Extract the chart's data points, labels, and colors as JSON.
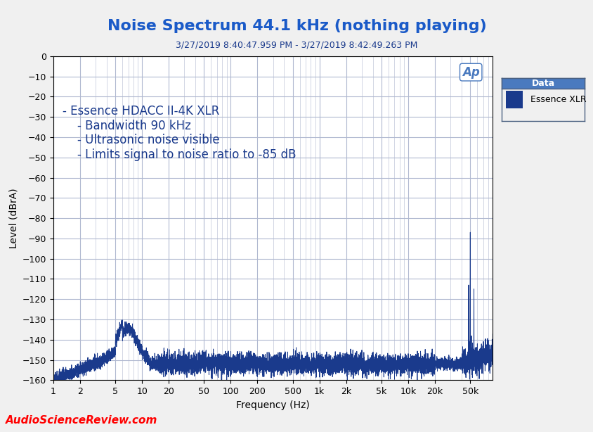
{
  "title": "Noise Spectrum 44.1 kHz (nothing playing)",
  "subtitle": "3/27/2019 8:40:47.959 PM - 3/27/2019 8:42:49.263 PM",
  "xlabel": "Frequency (Hz)",
  "ylabel": "Level (dBrA)",
  "xlim_log": [
    1,
    90000
  ],
  "ylim": [
    -160,
    0
  ],
  "yticks": [
    0,
    -10,
    -20,
    -30,
    -40,
    -50,
    -60,
    -70,
    -80,
    -90,
    -100,
    -110,
    -120,
    -130,
    -140,
    -150,
    -160
  ],
  "xtick_labels": [
    "1",
    "2",
    "5",
    "10",
    "20",
    "50",
    "100",
    "200",
    "500",
    "1k",
    "2k",
    "5k",
    "10k",
    "20k",
    "50k"
  ],
  "xtick_values": [
    1,
    2,
    5,
    10,
    20,
    50,
    100,
    200,
    500,
    1000,
    2000,
    5000,
    10000,
    20000,
    50000
  ],
  "line_color": "#1a3a8c",
  "title_color": "#1a5ac8",
  "subtitle_color": "#1a3a8c",
  "bg_color": "#f0f0f0",
  "plot_bg_color": "#ffffff",
  "grid_color": "#b0b8d0",
  "annotation_lines": [
    "- Essence HDACC II-4K XLR",
    "    - Bandwidth 90 kHz",
    "    - Ultrasonic noise visible",
    "    - Limits signal to noise ratio to -85 dB"
  ],
  "annotation_color": "#1a3a8c",
  "legend_title": "Data",
  "legend_label": "Essence XLR",
  "legend_color": "#1a3a8c",
  "legend_bg": "#f0f0f0",
  "legend_title_bg": "#4a7abf",
  "watermark_text": "AudioScienceReview.com",
  "watermark_color_A": "#ff0000",
  "watermark_color_B": "#ffa500",
  "ap_logo_color": "#4a7abf"
}
